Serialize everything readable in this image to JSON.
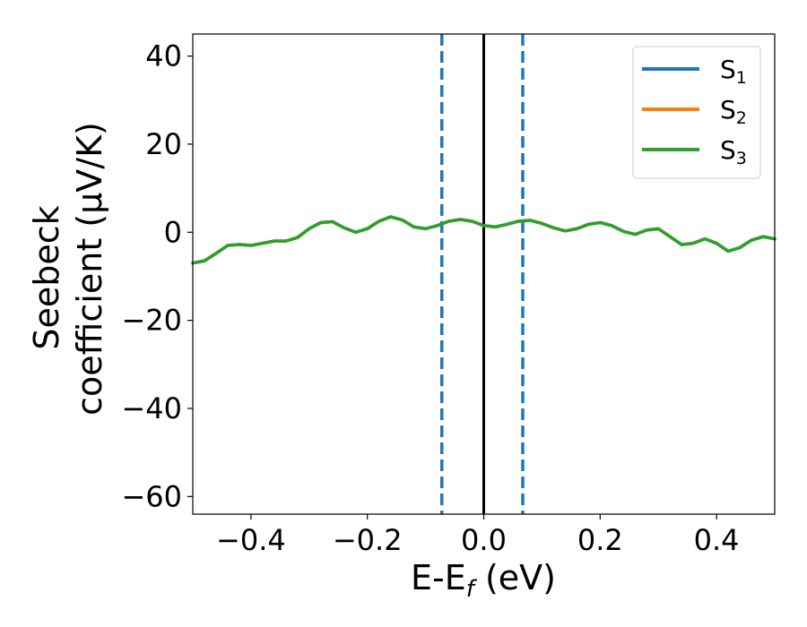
{
  "chart_data": {
    "type": "line",
    "xlabel": {
      "main": "E-E",
      "sub": "f",
      "unit": " (eV)"
    },
    "ylabel": {
      "line1": "Seebeck",
      "line2": "coefficient  (μV/K)"
    },
    "xlim": [
      -0.5,
      0.5
    ],
    "ylim": [
      -64,
      45
    ],
    "x_ticks": [
      -0.4,
      -0.2,
      0.0,
      0.2,
      0.4
    ],
    "x_tick_labels": [
      "−0.4",
      "−0.2",
      "0.0",
      "0.2",
      "0.4"
    ],
    "y_ticks": [
      40,
      20,
      0,
      -20,
      -40,
      -60
    ],
    "y_tick_labels": [
      "40",
      "20",
      "0",
      "−20",
      "−40",
      "−60"
    ],
    "grid": false,
    "legend_position": "top-right",
    "x": [
      -0.5,
      -0.48,
      -0.46,
      -0.44,
      -0.42,
      -0.4,
      -0.38,
      -0.36,
      -0.34,
      -0.32,
      -0.3,
      -0.28,
      -0.26,
      -0.24,
      -0.22,
      -0.2,
      -0.18,
      -0.16,
      -0.14,
      -0.12,
      -0.1,
      -0.08,
      -0.06,
      -0.04,
      -0.02,
      0.0,
      0.02,
      0.04,
      0.06,
      0.08,
      0.1,
      0.12,
      0.14,
      0.16,
      0.18,
      0.2,
      0.22,
      0.24,
      0.26,
      0.28,
      0.3,
      0.32,
      0.34,
      0.36,
      0.38,
      0.4,
      0.42,
      0.44,
      0.46,
      0.48,
      0.5
    ],
    "series": [
      {
        "name": "S",
        "sub": "1",
        "color": "#1f77b4",
        "values": [
          -7.0,
          -6.5,
          -4.8,
          -3.0,
          -2.8,
          -3.0,
          -2.5,
          -2.0,
          -2.0,
          -1.2,
          0.8,
          2.2,
          2.4,
          1.0,
          0.0,
          0.8,
          2.5,
          3.5,
          2.8,
          1.2,
          0.8,
          1.5,
          2.5,
          2.9,
          2.5,
          1.5,
          1.2,
          1.8,
          2.5,
          2.7,
          2.0,
          1.0,
          0.3,
          0.8,
          1.8,
          2.2,
          1.5,
          0.2,
          -0.5,
          0.5,
          0.8,
          -1.0,
          -2.8,
          -2.5,
          -1.5,
          -2.5,
          -4.3,
          -3.5,
          -1.8,
          -1.0,
          -1.5
        ]
      },
      {
        "name": "S",
        "sub": "2",
        "color": "#ff7f0e",
        "values": [
          -7.0,
          -6.5,
          -4.8,
          -3.0,
          -2.8,
          -3.0,
          -2.5,
          -2.0,
          -2.0,
          -1.2,
          0.8,
          2.2,
          2.4,
          1.0,
          0.0,
          0.8,
          2.5,
          3.5,
          2.8,
          1.2,
          0.8,
          1.5,
          2.5,
          2.9,
          2.5,
          1.5,
          1.2,
          1.8,
          2.5,
          2.7,
          2.0,
          1.0,
          0.3,
          0.8,
          1.8,
          2.2,
          1.5,
          0.2,
          -0.5,
          0.5,
          0.8,
          -1.0,
          -2.8,
          -2.5,
          -1.5,
          -2.5,
          -4.3,
          -3.5,
          -1.8,
          -1.0,
          -1.5
        ]
      },
      {
        "name": "S",
        "sub": "3",
        "color": "#2ca02c",
        "values": [
          -7.0,
          -6.5,
          -4.8,
          -3.0,
          -2.8,
          -3.0,
          -2.5,
          -2.0,
          -2.0,
          -1.2,
          0.8,
          2.2,
          2.4,
          1.0,
          0.0,
          0.8,
          2.5,
          3.5,
          2.8,
          1.2,
          0.8,
          1.5,
          2.5,
          2.9,
          2.5,
          1.5,
          1.2,
          1.8,
          2.5,
          2.7,
          2.0,
          1.0,
          0.3,
          0.8,
          1.8,
          2.2,
          1.5,
          0.2,
          -0.5,
          0.5,
          0.8,
          -1.0,
          -2.8,
          -2.5,
          -1.5,
          -2.5,
          -4.3,
          -3.5,
          -1.8,
          -1.0,
          -1.5
        ]
      }
    ],
    "vertical_lines": [
      {
        "x": -0.072,
        "style": "dashed",
        "color": "#1f77b4"
      },
      {
        "x": 0.0,
        "style": "solid",
        "color": "#000000"
      },
      {
        "x": 0.067,
        "style": "dashed",
        "color": "#1f77b4"
      }
    ]
  }
}
